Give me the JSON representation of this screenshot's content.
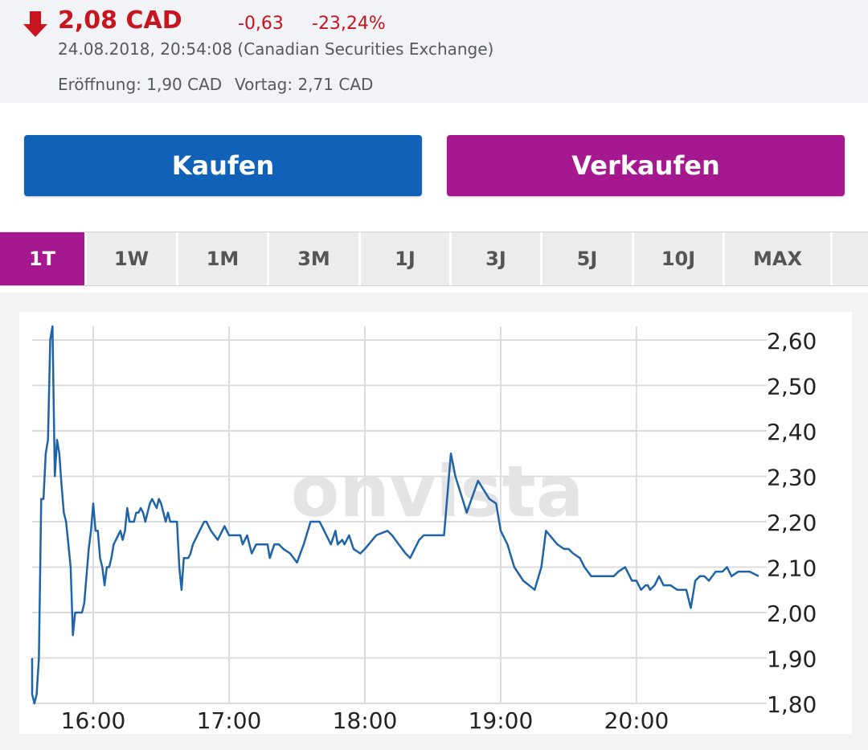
{
  "quote": {
    "price": "2,08 CAD",
    "change_abs": "-0,63",
    "change_pct": "-23,24%",
    "timestamp": "24.08.2018, 20:54:08 (Canadian Securities Exchange)",
    "open_label": "Eröffnung: 1,90 CAD",
    "prev_label": "Vortag: 2,71 CAD",
    "direction_icon": "arrow-down-icon",
    "color_negative": "#c8141e"
  },
  "actions": {
    "buy": "Kaufen",
    "sell": "Verkaufen",
    "buy_color": "#0f62b8",
    "sell_color": "#a5188f"
  },
  "tabs": [
    {
      "label": "1T",
      "active": true
    },
    {
      "label": "1W",
      "active": false
    },
    {
      "label": "1M",
      "active": false
    },
    {
      "label": "3M",
      "active": false
    },
    {
      "label": "1J",
      "active": false
    },
    {
      "label": "3J",
      "active": false
    },
    {
      "label": "5J",
      "active": false
    },
    {
      "label": "10J",
      "active": false
    },
    {
      "label": "MAX",
      "active": false
    }
  ],
  "watermark": "onvista",
  "chart_data": {
    "type": "line",
    "x_ticks": [
      "16:00",
      "17:00",
      "18:00",
      "19:00",
      "20:00"
    ],
    "y_ticks": [
      "2,60",
      "2,50",
      "2,40",
      "2,30",
      "2,20",
      "2,10",
      "2,00",
      "1,90",
      "1,80"
    ],
    "ylim": [
      1.8,
      2.63
    ],
    "xlim": [
      "15:33",
      "20:54"
    ],
    "grid": true,
    "line_color": "#1f63a8",
    "series": [
      {
        "x": [
          "15:33",
          "15:33",
          "15:34",
          "15:35",
          "15:36",
          "15:37",
          "15:38",
          "15:39",
          "15:40",
          "15:41",
          "15:42",
          "15:43",
          "15:44",
          "15:45",
          "15:46",
          "15:47",
          "15:48",
          "15:49",
          "15:50",
          "15:51",
          "15:52",
          "15:53",
          "15:54",
          "15:55",
          "15:56",
          "15:57",
          "15:58",
          "15:59",
          "16:00",
          "16:01",
          "16:02",
          "16:03",
          "16:04",
          "16:05",
          "16:06",
          "16:07",
          "16:08",
          "16:09",
          "16:10",
          "16:11",
          "16:12",
          "16:13",
          "16:14",
          "16:15",
          "16:16",
          "16:17",
          "16:18",
          "16:19",
          "16:20",
          "16:21",
          "16:22",
          "16:23",
          "16:24",
          "16:25",
          "16:26",
          "16:27",
          "16:28",
          "16:29",
          "16:30",
          "16:31",
          "16:32",
          "16:33",
          "16:34",
          "16:35",
          "16:36",
          "16:37",
          "16:38",
          "16:39",
          "16:40",
          "16:41",
          "16:42",
          "16:43",
          "16:44",
          "16:45",
          "16:46",
          "16:47",
          "16:48",
          "16:49",
          "16:50",
          "16:52",
          "16:55",
          "16:58",
          "17:00",
          "17:03",
          "17:05",
          "17:06",
          "17:08",
          "17:10",
          "17:12",
          "17:15",
          "17:17",
          "17:18",
          "17:20",
          "17:22",
          "17:24",
          "17:27",
          "17:30",
          "17:33",
          "17:36",
          "17:40",
          "17:45",
          "17:47",
          "17:48",
          "17:50",
          "17:51",
          "17:52",
          "17:53",
          "17:55",
          "17:58",
          "18:00",
          "18:05",
          "18:10",
          "18:12",
          "18:15",
          "18:18",
          "18:20",
          "18:22",
          "18:24",
          "18:26",
          "18:30",
          "18:35",
          "18:38",
          "18:40",
          "18:45",
          "18:50",
          "18:55",
          "18:58",
          "19:00",
          "19:03",
          "19:06",
          "19:10",
          "19:15",
          "19:18",
          "19:20",
          "19:25",
          "19:28",
          "19:30",
          "19:32",
          "19:35",
          "19:37",
          "19:40",
          "19:45",
          "19:50",
          "19:52",
          "19:55",
          "19:57",
          "19:58",
          "20:00",
          "20:02",
          "20:04",
          "20:05",
          "20:06",
          "20:08",
          "20:10",
          "20:12",
          "20:15",
          "20:18",
          "20:20",
          "20:22",
          "20:24",
          "20:26",
          "20:28",
          "20:30",
          "20:32",
          "20:35",
          "20:38",
          "20:40",
          "20:42",
          "20:45",
          "20:48",
          "20:50",
          "20:54"
        ],
        "values": [
          1.9,
          1.82,
          1.8,
          1.82,
          1.9,
          2.25,
          2.25,
          2.35,
          2.38,
          2.6,
          2.63,
          2.3,
          2.38,
          2.35,
          2.28,
          2.22,
          2.2,
          2.15,
          2.1,
          1.95,
          2.0,
          2.0,
          2.0,
          2.0,
          2.02,
          2.08,
          2.14,
          2.18,
          2.24,
          2.18,
          2.18,
          2.12,
          2.1,
          2.06,
          2.1,
          2.1,
          2.12,
          2.15,
          2.16,
          2.17,
          2.18,
          2.16,
          2.18,
          2.23,
          2.2,
          2.2,
          2.2,
          2.22,
          2.22,
          2.23,
          2.22,
          2.2,
          2.22,
          2.24,
          2.25,
          2.24,
          2.23,
          2.25,
          2.24,
          2.22,
          2.2,
          2.22,
          2.2,
          2.2,
          2.2,
          2.2,
          2.1,
          2.05,
          2.12,
          2.12,
          2.12,
          2.13,
          2.15,
          2.16,
          2.17,
          2.18,
          2.19,
          2.2,
          2.2,
          2.18,
          2.16,
          2.19,
          2.17,
          2.17,
          2.17,
          2.15,
          2.17,
          2.13,
          2.15,
          2.15,
          2.15,
          2.12,
          2.15,
          2.15,
          2.14,
          2.13,
          2.11,
          2.15,
          2.2,
          2.2,
          2.15,
          2.18,
          2.15,
          2.16,
          2.15,
          2.16,
          2.17,
          2.14,
          2.13,
          2.14,
          2.17,
          2.18,
          2.17,
          2.15,
          2.13,
          2.12,
          2.14,
          2.16,
          2.17,
          2.17,
          2.17,
          2.35,
          2.3,
          2.22,
          2.29,
          2.25,
          2.24,
          2.18,
          2.15,
          2.1,
          2.07,
          2.05,
          2.1,
          2.18,
          2.15,
          2.14,
          2.14,
          2.13,
          2.12,
          2.1,
          2.08,
          2.08,
          2.08,
          2.09,
          2.1,
          2.08,
          2.07,
          2.07,
          2.05,
          2.06,
          2.06,
          2.05,
          2.06,
          2.08,
          2.06,
          2.06,
          2.05,
          2.05,
          2.05,
          2.01,
          2.07,
          2.08,
          2.08,
          2.07,
          2.09,
          2.09,
          2.1,
          2.08,
          2.09,
          2.09,
          2.09,
          2.08
        ]
      }
    ]
  }
}
